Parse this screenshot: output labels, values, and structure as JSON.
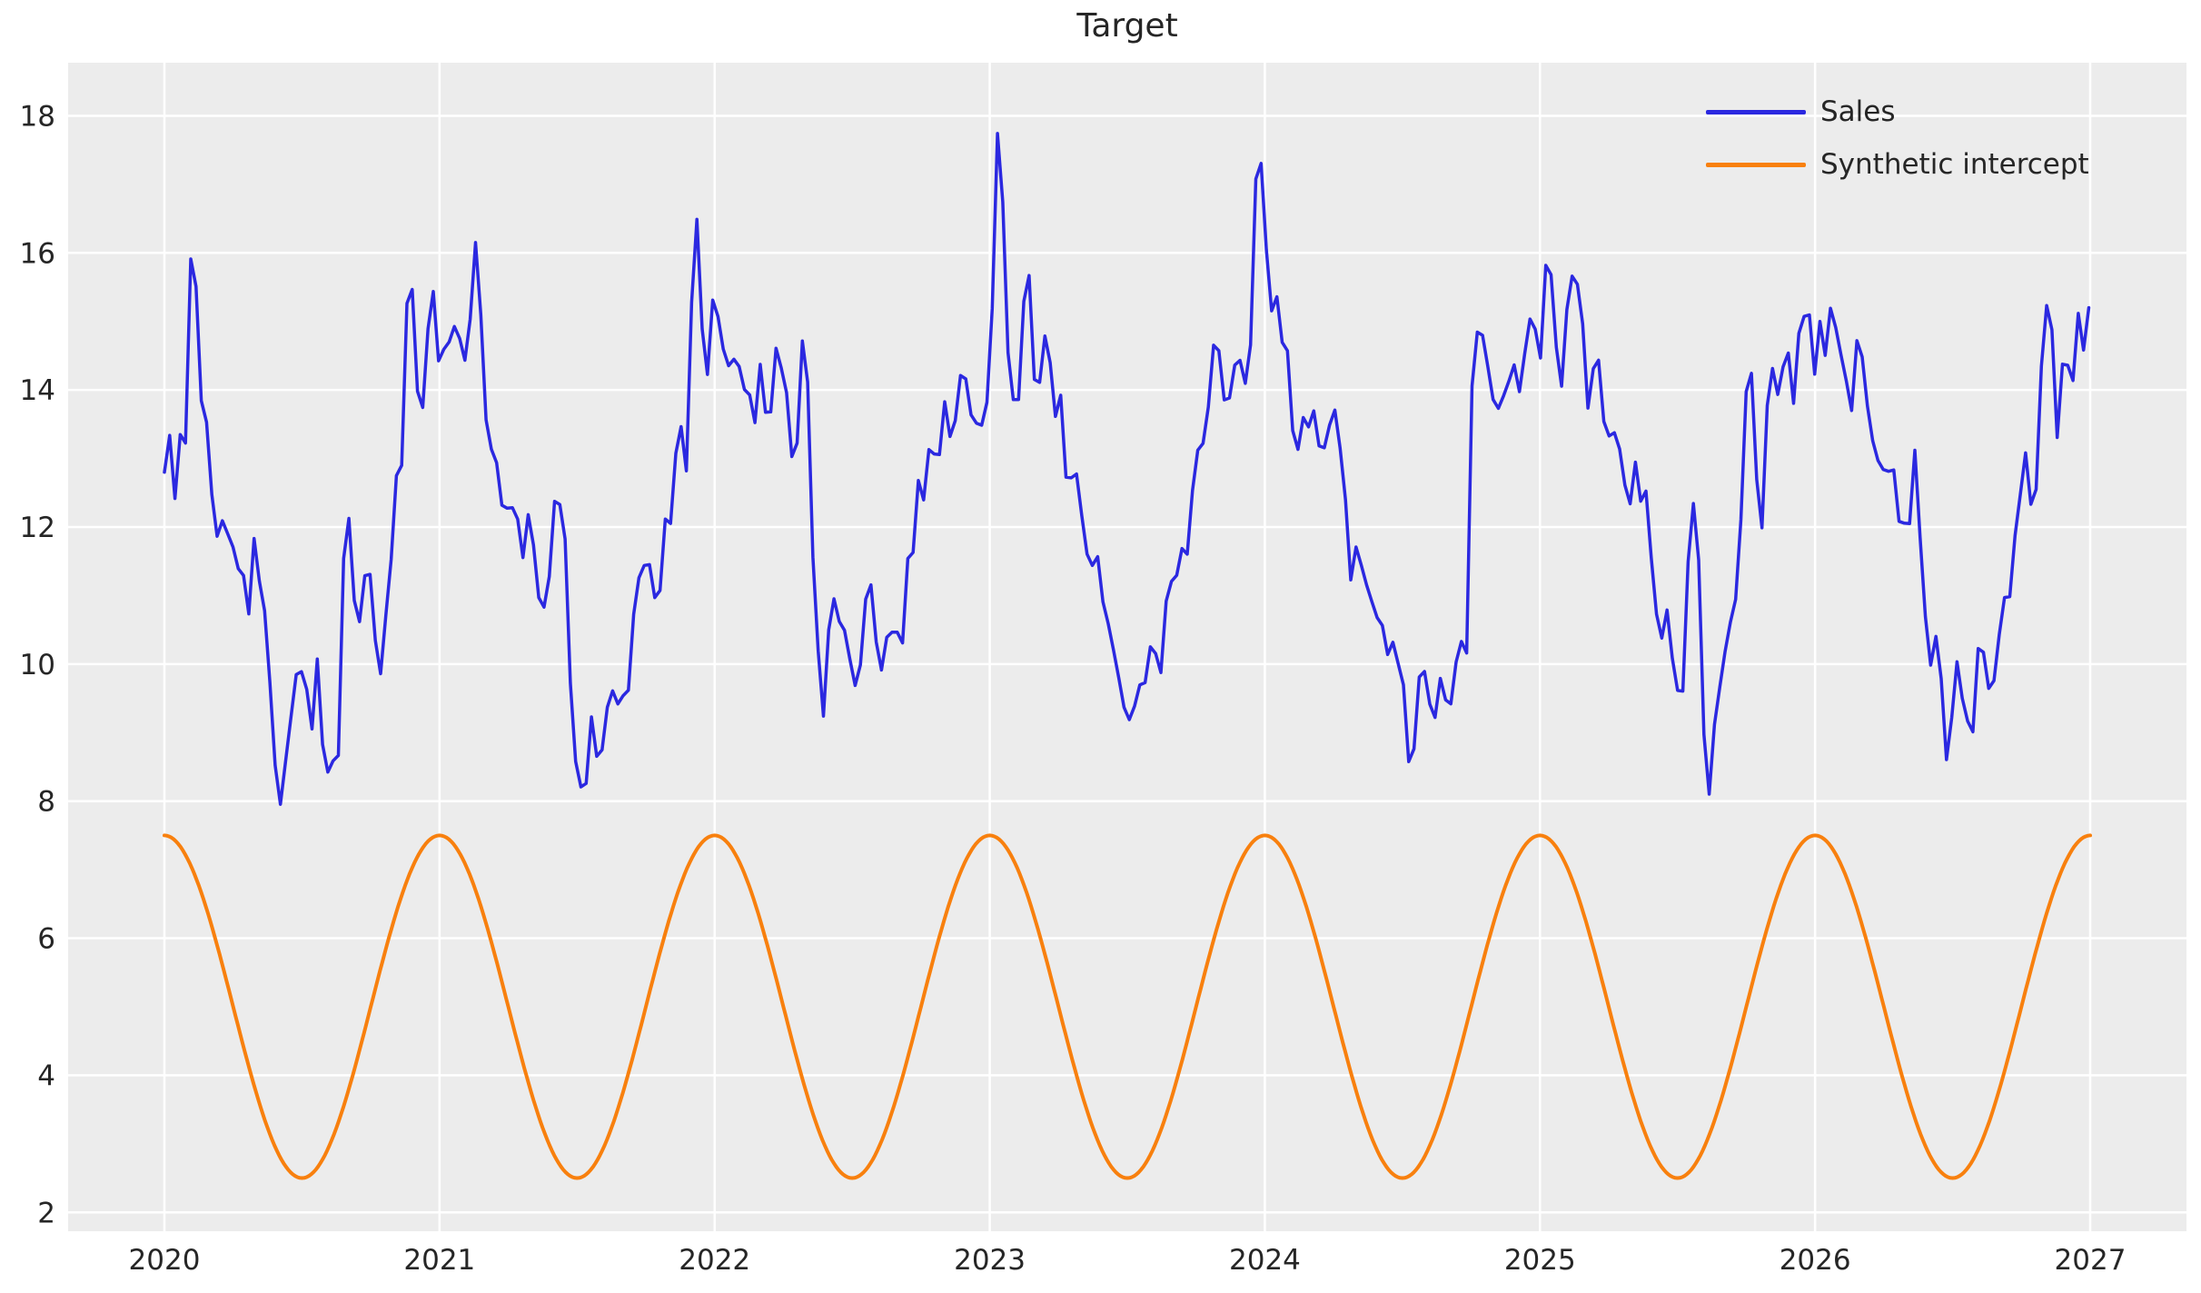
{
  "window_title": "Target",
  "chart_data": {
    "type": "line",
    "title": "Target",
    "xlabel": "",
    "ylabel": "",
    "style": {
      "figure_background": "#ffffff",
      "plot_background": "#ececec",
      "grid_color": "#ffffff",
      "grid_on": true,
      "text_color": "#262626",
      "tick_font_size": 31,
      "title_font_size": 36
    },
    "xlim": [
      2019.65,
      2027.35
    ],
    "ylim": [
      1.725,
      18.775
    ],
    "xticks": [
      2020,
      2021,
      2022,
      2023,
      2024,
      2025,
      2026,
      2027
    ],
    "yticks": [
      2,
      4,
      6,
      8,
      10,
      12,
      14,
      16,
      18
    ],
    "legend": {
      "position": "upper right",
      "frame": false,
      "entries": [
        {
          "label": "Sales",
          "color": "#2b28e0"
        },
        {
          "label": "Synthetic intercept",
          "color": "#f8800e"
        }
      ]
    },
    "series": [
      {
        "name": "Sales",
        "color": "#2b28e0",
        "line_width": 3.5,
        "sampling": "weekly",
        "t_start": 2020.0,
        "t_end": 2027.0,
        "noise_amplitude": 0.75,
        "anchors": [
          [
            2020.0,
            12.8
          ],
          [
            2020.04,
            12.4
          ],
          [
            2020.08,
            13.3
          ],
          [
            2020.1,
            16.6
          ],
          [
            2020.13,
            14.0
          ],
          [
            2020.17,
            12.5
          ],
          [
            2020.22,
            12.0
          ],
          [
            2020.26,
            11.6
          ],
          [
            2020.3,
            10.6
          ],
          [
            2020.34,
            11.4
          ],
          [
            2020.38,
            9.9
          ],
          [
            2020.42,
            7.9
          ],
          [
            2020.45,
            8.9
          ],
          [
            2020.49,
            10.2
          ],
          [
            2020.53,
            8.7
          ],
          [
            2020.56,
            10.3
          ],
          [
            2020.6,
            8.1
          ],
          [
            2020.63,
            8.3
          ],
          [
            2020.66,
            12.8
          ],
          [
            2020.7,
            10.3
          ],
          [
            2020.74,
            11.7
          ],
          [
            2020.78,
            9.6
          ],
          [
            2020.82,
            11.4
          ],
          [
            2020.86,
            12.6
          ],
          [
            2020.89,
            16.3
          ],
          [
            2020.93,
            13.2
          ],
          [
            2020.97,
            15.6
          ],
          [
            2021.02,
            14.5
          ],
          [
            2021.06,
            15.0
          ],
          [
            2021.1,
            14.3
          ],
          [
            2021.13,
            16.2
          ],
          [
            2021.17,
            13.5
          ],
          [
            2021.21,
            12.9
          ],
          [
            2021.25,
            12.2
          ],
          [
            2021.29,
            12.1
          ],
          [
            2021.33,
            12.2
          ],
          [
            2021.37,
            10.6
          ],
          [
            2021.4,
            11.3
          ],
          [
            2021.44,
            12.4
          ],
          [
            2021.48,
            9.4
          ],
          [
            2021.52,
            8.0
          ],
          [
            2021.55,
            9.3
          ],
          [
            2021.58,
            8.4
          ],
          [
            2021.62,
            9.7
          ],
          [
            2021.66,
            9.3
          ],
          [
            2021.7,
            10.6
          ],
          [
            2021.74,
            11.5
          ],
          [
            2021.78,
            10.9
          ],
          [
            2021.82,
            12.1
          ],
          [
            2021.86,
            13.1
          ],
          [
            2021.9,
            12.8
          ],
          [
            2021.93,
            16.9
          ],
          [
            2021.97,
            14.0
          ],
          [
            2022.0,
            15.7
          ],
          [
            2022.04,
            14.3
          ],
          [
            2022.08,
            14.5
          ],
          [
            2022.12,
            13.8
          ],
          [
            2022.16,
            14.5
          ],
          [
            2022.2,
            13.6
          ],
          [
            2022.24,
            14.4
          ],
          [
            2022.28,
            13.0
          ],
          [
            2022.33,
            15.2
          ],
          [
            2022.36,
            11.2
          ],
          [
            2022.4,
            9.0
          ],
          [
            2022.44,
            11.3
          ],
          [
            2022.48,
            10.3
          ],
          [
            2022.52,
            9.5
          ],
          [
            2022.56,
            11.5
          ],
          [
            2022.6,
            9.8
          ],
          [
            2022.64,
            10.5
          ],
          [
            2022.68,
            10.2
          ],
          [
            2022.72,
            11.6
          ],
          [
            2022.76,
            12.4
          ],
          [
            2022.8,
            13.1
          ],
          [
            2022.84,
            13.9
          ],
          [
            2022.88,
            13.5
          ],
          [
            2022.92,
            14.3
          ],
          [
            2022.96,
            13.3
          ],
          [
            2023.0,
            14.0
          ],
          [
            2023.03,
            18.0
          ],
          [
            2023.07,
            14.2
          ],
          [
            2023.1,
            13.6
          ],
          [
            2023.14,
            15.8
          ],
          [
            2023.18,
            14.1
          ],
          [
            2023.22,
            14.4
          ],
          [
            2023.26,
            13.9
          ],
          [
            2023.3,
            12.6
          ],
          [
            2023.34,
            12.1
          ],
          [
            2023.38,
            11.3
          ],
          [
            2023.42,
            10.8
          ],
          [
            2023.46,
            10.0
          ],
          [
            2023.5,
            9.1
          ],
          [
            2023.54,
            9.6
          ],
          [
            2023.58,
            10.3
          ],
          [
            2023.62,
            9.8
          ],
          [
            2023.66,
            11.2
          ],
          [
            2023.7,
            11.7
          ],
          [
            2023.74,
            12.6
          ],
          [
            2023.78,
            13.3
          ],
          [
            2023.82,
            14.9
          ],
          [
            2023.86,
            13.6
          ],
          [
            2023.9,
            14.6
          ],
          [
            2023.94,
            13.9
          ],
          [
            2023.98,
            17.7
          ],
          [
            2024.02,
            15.2
          ],
          [
            2024.06,
            14.8
          ],
          [
            2024.1,
            13.4
          ],
          [
            2024.14,
            13.6
          ],
          [
            2024.18,
            13.7
          ],
          [
            2024.22,
            13.1
          ],
          [
            2024.26,
            13.8
          ],
          [
            2024.3,
            12.1
          ],
          [
            2024.34,
            11.6
          ],
          [
            2024.38,
            11.0
          ],
          [
            2024.42,
            10.6
          ],
          [
            2024.46,
            10.4
          ],
          [
            2024.5,
            9.8
          ],
          [
            2024.54,
            8.7
          ],
          [
            2024.58,
            9.9
          ],
          [
            2024.62,
            9.2
          ],
          [
            2024.66,
            9.5
          ],
          [
            2024.7,
            10.1
          ],
          [
            2024.73,
            9.4
          ],
          [
            2024.76,
            15.5
          ],
          [
            2024.8,
            14.6
          ],
          [
            2024.84,
            13.6
          ],
          [
            2024.88,
            14.2
          ],
          [
            2024.92,
            13.8
          ],
          [
            2024.96,
            15.1
          ],
          [
            2025.0,
            14.4
          ],
          [
            2025.04,
            15.7
          ],
          [
            2025.08,
            14.0
          ],
          [
            2025.13,
            15.9
          ],
          [
            2025.17,
            13.6
          ],
          [
            2025.2,
            14.5
          ],
          [
            2025.24,
            13.3
          ],
          [
            2025.28,
            13.4
          ],
          [
            2025.32,
            12.3
          ],
          [
            2025.36,
            12.5
          ],
          [
            2025.4,
            11.7
          ],
          [
            2025.44,
            10.4
          ],
          [
            2025.48,
            10.1
          ],
          [
            2025.52,
            9.6
          ],
          [
            2025.56,
            12.5
          ],
          [
            2025.6,
            8.6
          ],
          [
            2025.64,
            9.2
          ],
          [
            2025.68,
            10.4
          ],
          [
            2025.72,
            11.1
          ],
          [
            2025.76,
            15.0
          ],
          [
            2025.8,
            11.5
          ],
          [
            2025.84,
            14.3
          ],
          [
            2025.88,
            14.4
          ],
          [
            2025.92,
            13.7
          ],
          [
            2025.95,
            15.3
          ],
          [
            2026.0,
            14.2
          ],
          [
            2026.05,
            15.3
          ],
          [
            2026.09,
            14.6
          ],
          [
            2026.12,
            14.0
          ],
          [
            2026.16,
            14.9
          ],
          [
            2026.2,
            13.4
          ],
          [
            2026.24,
            12.8
          ],
          [
            2026.28,
            13.0
          ],
          [
            2026.32,
            11.9
          ],
          [
            2026.36,
            13.3
          ],
          [
            2026.4,
            10.7
          ],
          [
            2026.44,
            10.4
          ],
          [
            2026.48,
            8.5
          ],
          [
            2026.52,
            10.2
          ],
          [
            2026.56,
            9.0
          ],
          [
            2026.6,
            10.5
          ],
          [
            2026.64,
            9.4
          ],
          [
            2026.68,
            10.8
          ],
          [
            2026.72,
            11.6
          ],
          [
            2026.76,
            13.2
          ],
          [
            2026.8,
            12.3
          ],
          [
            2026.85,
            15.8
          ],
          [
            2026.88,
            13.3
          ],
          [
            2026.92,
            14.4
          ],
          [
            2026.95,
            15.1
          ],
          [
            2026.99,
            15.2
          ]
        ]
      },
      {
        "name": "Synthetic intercept",
        "color": "#f8800e",
        "line_width": 4,
        "sampling": "smooth",
        "formula": {
          "shape": "cosine",
          "mean": 5.0,
          "amplitude": 2.5,
          "period_years": 1,
          "peak_at_year_start": true,
          "min": 2.5,
          "max": 7.5,
          "t_start": 2020.0,
          "t_end": 2027.0
        }
      }
    ]
  }
}
